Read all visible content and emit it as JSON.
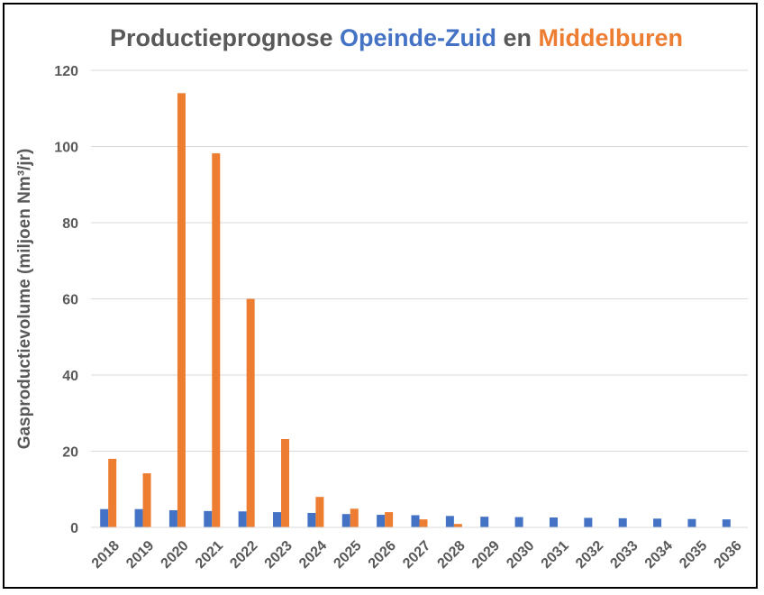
{
  "chart_data": {
    "type": "bar",
    "title_parts": [
      {
        "text": "Productieprognose ",
        "color": "#595959"
      },
      {
        "text": "Opeinde-Zuid",
        "color": "#4472C4"
      },
      {
        "text": " en ",
        "color": "#595959"
      },
      {
        "text": "Middelburen",
        "color": "#ED7D31"
      }
    ],
    "ylabel": "Gasproductievolume (miljoen Nm³/jr)",
    "ylim": [
      0,
      120
    ],
    "yticks": [
      0,
      20,
      40,
      60,
      80,
      100,
      120
    ],
    "grid": true,
    "categories": [
      "2018",
      "2019",
      "2020",
      "2021",
      "2022",
      "2023",
      "2024",
      "2025",
      "2026",
      "2027",
      "2028",
      "2029",
      "2030",
      "2031",
      "2032",
      "2033",
      "2034",
      "2035",
      "2036"
    ],
    "series": [
      {
        "name": "Opeinde-Zuid",
        "color": "#4472C4",
        "values": [
          4.8,
          4.8,
          4.5,
          4.3,
          4.2,
          4.0,
          3.8,
          3.5,
          3.3,
          3.2,
          3.0,
          2.8,
          2.7,
          2.6,
          2.5,
          2.4,
          2.3,
          2.2,
          2.1
        ]
      },
      {
        "name": "Middelburen",
        "color": "#ED7D31",
        "values": [
          18,
          14.2,
          114,
          98.2,
          60,
          23.2,
          8,
          4.9,
          4.0,
          2.1,
          0.9,
          0,
          0,
          0,
          0,
          0,
          0,
          0,
          0
        ]
      }
    ]
  }
}
